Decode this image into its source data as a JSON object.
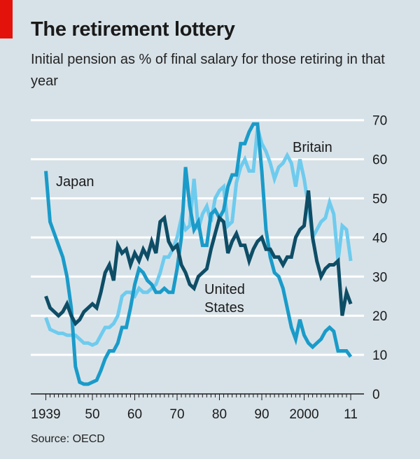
{
  "header": {
    "title": "The retirement lottery",
    "subtitle": "Initial pension as % of final salary for those retiring in that year"
  },
  "footer": {
    "source": "Source: OECD"
  },
  "chart_data": {
    "type": "line",
    "title": "The retirement lottery",
    "subtitle": "Initial pension as % of final salary for those retiring in that year",
    "xlabel": "",
    "ylabel": "",
    "xlim": [
      1939,
      2011
    ],
    "ylim": [
      0,
      70
    ],
    "yticks": [
      0,
      10,
      20,
      30,
      40,
      50,
      60,
      70
    ],
    "ytick_side": "right",
    "xticks": [
      {
        "value": 1939,
        "label": "1939"
      },
      {
        "value": 1950,
        "label": "50"
      },
      {
        "value": 1960,
        "label": "60"
      },
      {
        "value": 1970,
        "label": "70"
      },
      {
        "value": 1980,
        "label": "80"
      },
      {
        "value": 1990,
        "label": "90"
      },
      {
        "value": 2000,
        "label": "2000"
      },
      {
        "value": 2011,
        "label": "11"
      }
    ],
    "grid": true,
    "legend": "inline labels",
    "x": [
      1939,
      1940,
      1941,
      1942,
      1943,
      1944,
      1945,
      1946,
      1947,
      1948,
      1949,
      1950,
      1951,
      1952,
      1953,
      1954,
      1955,
      1956,
      1957,
      1958,
      1959,
      1960,
      1961,
      1962,
      1963,
      1964,
      1965,
      1966,
      1967,
      1968,
      1969,
      1970,
      1971,
      1972,
      1973,
      1974,
      1975,
      1976,
      1977,
      1978,
      1979,
      1980,
      1981,
      1982,
      1983,
      1984,
      1985,
      1986,
      1987,
      1988,
      1989,
      1990,
      1991,
      1992,
      1993,
      1994,
      1995,
      1996,
      1997,
      1998,
      1999,
      2000,
      2001,
      2002,
      2003,
      2004,
      2005,
      2006,
      2007,
      2008,
      2009,
      2010,
      2011
    ],
    "series": [
      {
        "name": "Japan",
        "label": "Japan",
        "color": "#1a9bc9",
        "values": [
          57,
          44,
          41,
          38,
          35,
          30,
          22,
          7,
          3,
          2.5,
          2.5,
          3,
          3.5,
          6,
          9,
          11,
          11,
          13,
          17,
          17,
          22,
          28,
          32,
          31,
          29,
          28,
          26,
          26,
          27,
          26,
          26,
          32,
          40,
          58,
          48,
          42,
          44,
          38,
          38,
          46,
          47,
          45,
          47,
          53,
          56,
          56,
          64,
          64,
          67,
          69,
          69,
          57,
          42,
          35,
          31,
          30,
          27,
          22,
          17,
          14,
          19,
          15,
          13,
          12,
          13,
          14,
          16,
          17,
          16,
          11,
          11,
          11,
          9.5
        ]
      },
      {
        "name": "United States",
        "label": "United States",
        "color": "#0e4d66",
        "values": [
          25,
          22,
          21,
          20,
          21,
          23,
          20,
          18,
          19,
          21,
          22,
          23,
          22,
          26,
          31,
          33,
          29,
          38,
          36,
          37,
          33,
          36,
          34,
          37,
          35,
          39,
          36,
          44,
          45,
          39,
          37,
          38,
          33,
          31,
          28,
          27,
          30,
          31,
          32,
          37,
          41,
          45,
          44,
          36,
          39,
          41,
          38,
          38,
          34,
          37,
          39,
          40,
          37,
          37,
          35,
          35,
          33,
          35,
          35,
          40,
          42,
          43,
          52,
          40,
          34,
          30,
          32,
          33,
          33,
          34,
          20,
          26,
          23
        ]
      },
      {
        "name": "Britain",
        "label": "Britain",
        "color": "#6ecbee",
        "values": [
          19.5,
          16.5,
          16,
          15.5,
          15.5,
          15,
          15,
          15,
          14,
          13,
          13,
          12.5,
          13,
          15,
          17,
          17,
          18,
          20,
          25,
          26,
          26,
          25,
          27,
          26,
          26,
          27,
          28,
          31,
          35,
          35,
          37,
          40,
          45,
          42,
          43,
          55,
          42,
          46,
          48,
          44,
          50,
          52,
          53,
          43,
          44,
          54,
          58,
          60,
          57,
          57,
          68,
          64,
          62,
          59,
          55,
          58,
          59,
          61,
          59,
          53,
          60,
          55,
          48,
          40,
          42,
          44,
          45,
          49,
          46,
          34,
          43,
          42,
          34
        ]
      }
    ]
  }
}
